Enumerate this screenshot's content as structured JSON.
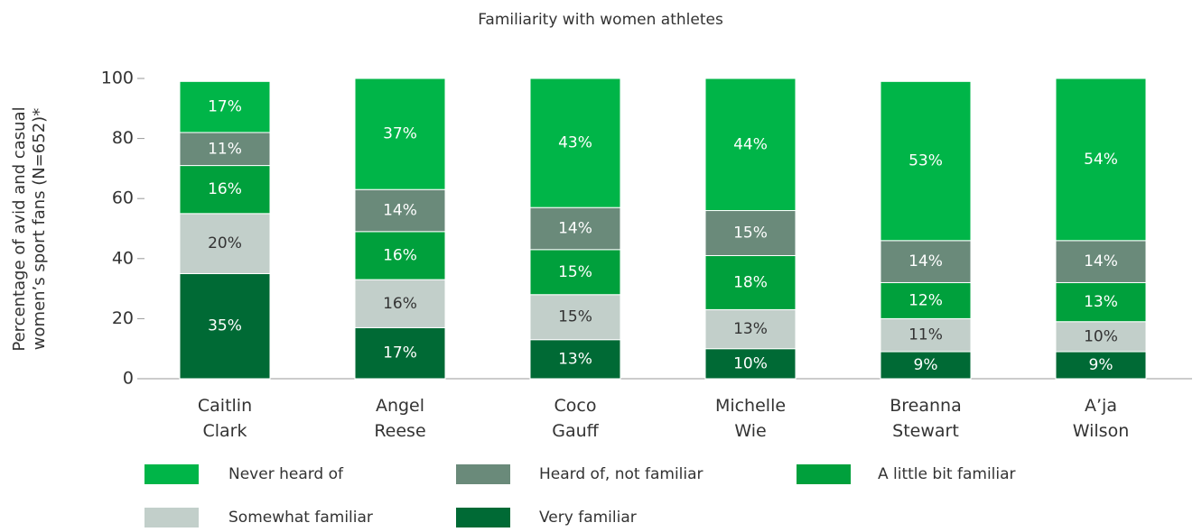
{
  "chart_data": {
    "type": "stacked_bar",
    "title": "Familiarity with women athletes",
    "ylabel": [
      "Percentage of avid and casual",
      "women’s sport fans (N=652)*"
    ],
    "categories": [
      "Caitlin Clark",
      "Angel Reese",
      "Coco Gauff",
      "Michelle Wie",
      "Breanna Stewart",
      "A’ja Wilson"
    ],
    "ylim": [
      0,
      100
    ],
    "yticks": [
      0,
      20,
      40,
      60,
      80,
      100
    ],
    "series": [
      {
        "name": "Never heard of",
        "color": "#00b548",
        "values": [
          17,
          37,
          43,
          44,
          53,
          54
        ],
        "value_labels": [
          "17%",
          "37%",
          "43%",
          "44%",
          "53%",
          "54%"
        ]
      },
      {
        "name": "Heard of, not familiar",
        "color": "#6a8a7a",
        "values": [
          11,
          14,
          14,
          15,
          14,
          14
        ],
        "value_labels": [
          "11%",
          "14%",
          "14%",
          "15%",
          "14%",
          "14%"
        ]
      },
      {
        "name": "A little bit familiar",
        "color": "#00a03c",
        "values": [
          16,
          16,
          15,
          18,
          12,
          13
        ],
        "value_labels": [
          "16%",
          "16%",
          "15%",
          "18%",
          "12%",
          "13%"
        ]
      },
      {
        "name": "Somewhat familiar",
        "color": "#c2cfca",
        "values": [
          20,
          16,
          15,
          13,
          11,
          10
        ],
        "value_labels": [
          "20%",
          "16%",
          "15%",
          "13%",
          "11%",
          "10%"
        ]
      },
      {
        "name": "Very familiar",
        "color": "#006a35",
        "values": [
          35,
          17,
          13,
          10,
          9,
          9
        ],
        "value_labels": [
          "35%",
          "17%",
          "13%",
          "10%",
          "9%",
          "9%"
        ]
      }
    ]
  }
}
